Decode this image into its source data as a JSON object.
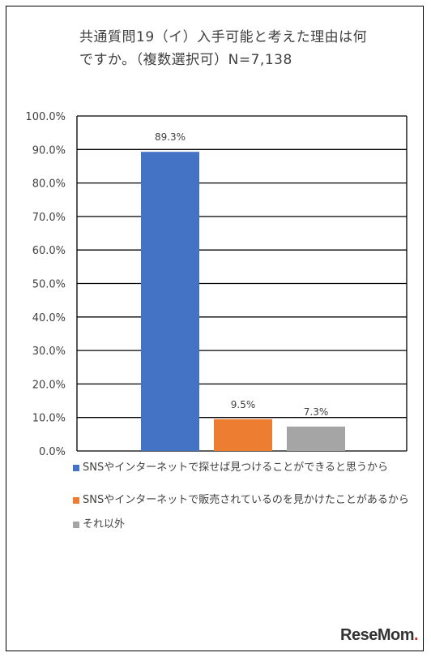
{
  "title": {
    "line1": "共通質問19（イ）入手可能と考えた理由は何",
    "line2": "ですか。（複数選択可）N=7,138"
  },
  "chart_data": {
    "type": "bar",
    "categories": [
      "SNSやインターネットで探せば見つけることができると思うから",
      "SNSやインターネットで販売されているのを見かけたことがあるから",
      "それ以外"
    ],
    "values": [
      89.3,
      9.5,
      7.3
    ],
    "value_labels": [
      "89.3%",
      "9.5%",
      "7.3%"
    ],
    "colors": [
      "#4472C4",
      "#ED7D31",
      "#A5A5A5"
    ],
    "ylim": [
      0,
      100
    ],
    "y_ticks": [
      "0.0%",
      "10.0%",
      "20.0%",
      "30.0%",
      "40.0%",
      "50.0%",
      "60.0%",
      "70.0%",
      "80.0%",
      "90.0%",
      "100.0%"
    ],
    "grid": true,
    "legend_position": "bottom"
  },
  "legend": {
    "items": [
      {
        "label": "SNSやインターネットで探せば見つけることができると思うから",
        "color": "#4472C4"
      },
      {
        "label": "SNSやインターネットで販売されているのを見かけたことがあるから",
        "color": "#ED7D31"
      },
      {
        "label": "それ以外",
        "color": "#A5A5A5"
      }
    ]
  },
  "logo": {
    "text_main": "ReseMom",
    "text_dot": "."
  }
}
